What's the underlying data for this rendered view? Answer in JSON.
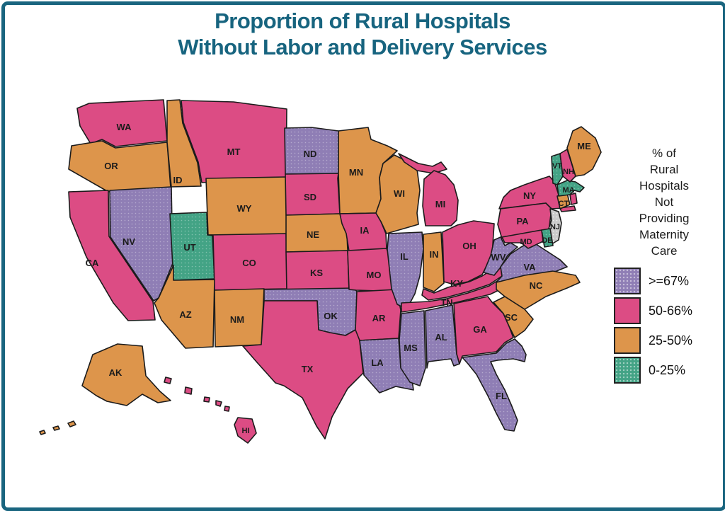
{
  "title": {
    "line1": "Proportion of Rural Hospitals",
    "line2": "Without Labor and Delivery Services"
  },
  "legend": {
    "title": "% of\nRural\nHospitals\nNot\nProviding\nMaternity\nCare",
    "items": [
      {
        "label": ">=67%",
        "color": "#8F7EB5",
        "textured": true
      },
      {
        "label": "50-66%",
        "color": "#DC4C84",
        "textured": false
      },
      {
        "label": "25-50%",
        "color": "#DD954B",
        "textured": false
      },
      {
        "label": "0-25%",
        "color": "#43A385",
        "textured": true
      }
    ],
    "no_data_color": "#CBCBCB"
  },
  "theme": {
    "accent_teal": "#19657F",
    "state_border": "#1B1B1B",
    "label_color": "#1B1B1B"
  },
  "chart_data": {
    "type": "heatmap",
    "subtype": "us-choropleth-map",
    "title": "Proportion of Rural Hospitals Without Labor and Delivery Services",
    "legend_title": "% of Rural Hospitals Not Providing Maternity Care",
    "categories": [
      ">=67%",
      "50-66%",
      "25-50%",
      "0-25%"
    ],
    "states": [
      {
        "code": "WA",
        "category": "50-66%"
      },
      {
        "code": "OR",
        "category": "25-50%"
      },
      {
        "code": "CA",
        "category": "50-66%"
      },
      {
        "code": "NV",
        "category": ">=67%"
      },
      {
        "code": "ID",
        "category": "25-50%"
      },
      {
        "code": "MT",
        "category": "50-66%"
      },
      {
        "code": "WY",
        "category": "25-50%"
      },
      {
        "code": "UT",
        "category": "0-25%"
      },
      {
        "code": "CO",
        "category": "50-66%"
      },
      {
        "code": "AZ",
        "category": "25-50%"
      },
      {
        "code": "NM",
        "category": "25-50%"
      },
      {
        "code": "ND",
        "category": ">=67%"
      },
      {
        "code": "SD",
        "category": "50-66%"
      },
      {
        "code": "NE",
        "category": "25-50%"
      },
      {
        "code": "KS",
        "category": "50-66%"
      },
      {
        "code": "OK",
        "category": ">=67%"
      },
      {
        "code": "TX",
        "category": "50-66%"
      },
      {
        "code": "MN",
        "category": "25-50%"
      },
      {
        "code": "IA",
        "category": "50-66%"
      },
      {
        "code": "MO",
        "category": "50-66%"
      },
      {
        "code": "AR",
        "category": "50-66%"
      },
      {
        "code": "LA",
        "category": ">=67%"
      },
      {
        "code": "WI",
        "category": "25-50%"
      },
      {
        "code": "IL",
        "category": ">=67%"
      },
      {
        "code": "MS",
        "category": ">=67%"
      },
      {
        "code": "MI",
        "category": "50-66%"
      },
      {
        "code": "IN",
        "category": "25-50%"
      },
      {
        "code": "OH",
        "category": "50-66%"
      },
      {
        "code": "KY",
        "category": "50-66%"
      },
      {
        "code": "TN",
        "category": "50-66%"
      },
      {
        "code": "AL",
        "category": ">=67%"
      },
      {
        "code": "GA",
        "category": "50-66%"
      },
      {
        "code": "FL",
        "category": ">=67%"
      },
      {
        "code": "WV",
        "category": ">=67%"
      },
      {
        "code": "VA",
        "category": ">=67%"
      },
      {
        "code": "NC",
        "category": "25-50%"
      },
      {
        "code": "SC",
        "category": "25-50%"
      },
      {
        "code": "NY",
        "category": "50-66%"
      },
      {
        "code": "PA",
        "category": "50-66%"
      },
      {
        "code": "NJ",
        "category": "no-data"
      },
      {
        "code": "MD",
        "category": "50-66%"
      },
      {
        "code": "DE",
        "category": "0-25%"
      },
      {
        "code": "CT",
        "category": "25-50%"
      },
      {
        "code": "RI",
        "category": "50-66%"
      },
      {
        "code": "MA",
        "category": "0-25%"
      },
      {
        "code": "VT",
        "category": "0-25%"
      },
      {
        "code": "NH",
        "category": "50-66%"
      },
      {
        "code": "ME",
        "category": "25-50%"
      },
      {
        "code": "AK",
        "category": "25-50%"
      },
      {
        "code": "HI",
        "category": "50-66%"
      }
    ]
  }
}
